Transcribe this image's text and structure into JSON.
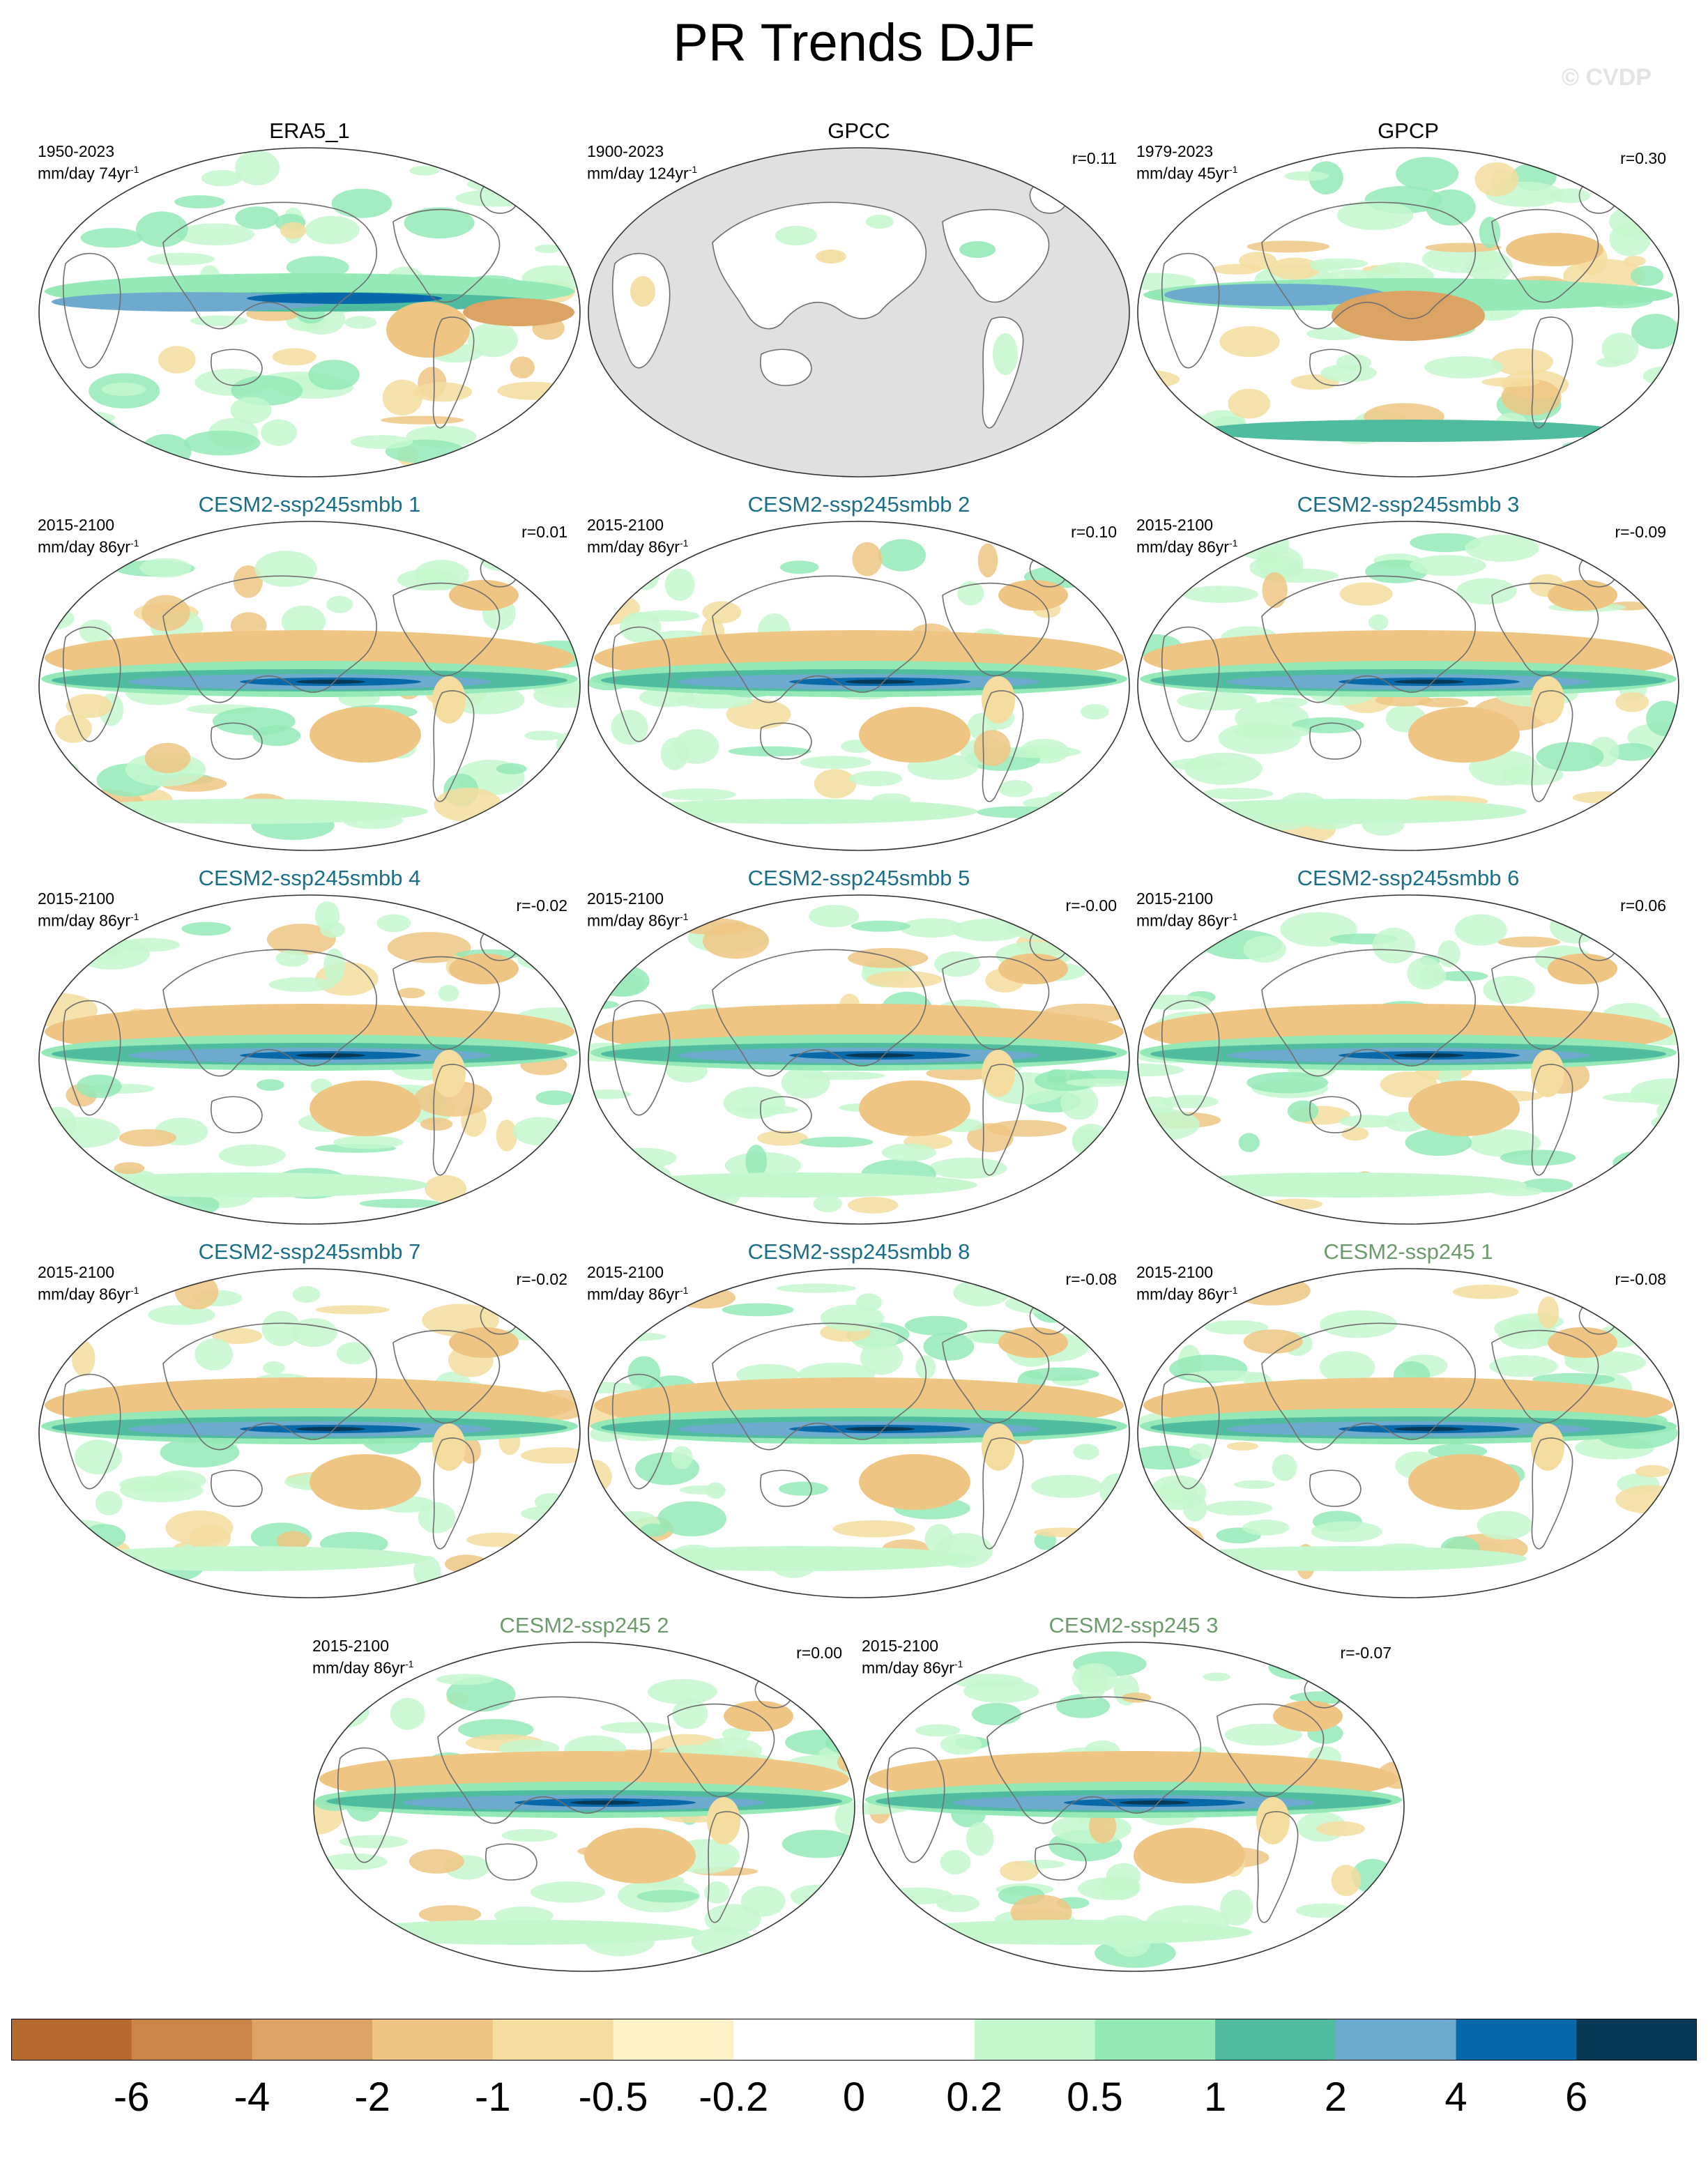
{
  "title": "PR Trends DJF",
  "watermark": "© CVDP",
  "panels": [
    {
      "title": "ERA5_1",
      "kind": "obs",
      "years": "1950-2023",
      "units": "mm/day 74yr",
      "unit_exp": "-1",
      "r": "",
      "pattern": "era5",
      "land_only": false
    },
    {
      "title": "GPCC",
      "kind": "obs",
      "years": "1900-2023",
      "units": "mm/day 124yr",
      "unit_exp": "-1",
      "r": "r=0.11",
      "pattern": "gpcc",
      "land_only": true
    },
    {
      "title": "GPCP",
      "kind": "obs",
      "years": "1979-2023",
      "units": "mm/day 45yr",
      "unit_exp": "-1",
      "r": "r=0.30",
      "pattern": "gpcp",
      "land_only": false
    },
    {
      "title": "CESM2-ssp245smbb 1",
      "kind": "smbb",
      "years": "2015-2100",
      "units": "mm/day 86yr",
      "unit_exp": "-1",
      "r": "r=0.01",
      "pattern": "model",
      "land_only": false
    },
    {
      "title": "CESM2-ssp245smbb 2",
      "kind": "smbb",
      "years": "2015-2100",
      "units": "mm/day 86yr",
      "unit_exp": "-1",
      "r": "r=0.10",
      "pattern": "model",
      "land_only": false
    },
    {
      "title": "CESM2-ssp245smbb 3",
      "kind": "smbb",
      "years": "2015-2100",
      "units": "mm/day 86yr",
      "unit_exp": "-1",
      "r": "r=-0.09",
      "pattern": "model",
      "land_only": false
    },
    {
      "title": "CESM2-ssp245smbb 4",
      "kind": "smbb",
      "years": "2015-2100",
      "units": "mm/day 86yr",
      "unit_exp": "-1",
      "r": "r=-0.02",
      "pattern": "model",
      "land_only": false
    },
    {
      "title": "CESM2-ssp245smbb 5",
      "kind": "smbb",
      "years": "2015-2100",
      "units": "mm/day 86yr",
      "unit_exp": "-1",
      "r": "r=-0.00",
      "pattern": "model",
      "land_only": false
    },
    {
      "title": "CESM2-ssp245smbb 6",
      "kind": "smbb",
      "years": "2015-2100",
      "units": "mm/day 86yr",
      "unit_exp": "-1",
      "r": "r=0.06",
      "pattern": "model",
      "land_only": false
    },
    {
      "title": "CESM2-ssp245smbb 7",
      "kind": "smbb",
      "years": "2015-2100",
      "units": "mm/day 86yr",
      "unit_exp": "-1",
      "r": "r=-0.02",
      "pattern": "model",
      "land_only": false
    },
    {
      "title": "CESM2-ssp245smbb 8",
      "kind": "smbb",
      "years": "2015-2100",
      "units": "mm/day 86yr",
      "unit_exp": "-1",
      "r": "r=-0.08",
      "pattern": "model",
      "land_only": false
    },
    {
      "title": "CESM2-ssp245 1",
      "kind": "ssp",
      "years": "2015-2100",
      "units": "mm/day 86yr",
      "unit_exp": "-1",
      "r": "r=-0.08",
      "pattern": "model",
      "land_only": false
    },
    {
      "title": "CESM2-ssp245 2",
      "kind": "ssp",
      "years": "2015-2100",
      "units": "mm/day 86yr",
      "unit_exp": "-1",
      "r": "r=0.00",
      "pattern": "model",
      "land_only": false
    },
    {
      "title": "CESM2-ssp245 3",
      "kind": "ssp",
      "years": "2015-2100",
      "units": "mm/day 86yr",
      "unit_exp": "-1",
      "r": "r=-0.07",
      "pattern": "model",
      "land_only": false
    }
  ],
  "colorbar": {
    "colors": [
      "#b5692c",
      "#cb8546",
      "#dca464",
      "#eec583",
      "#f4dd9f",
      "#faf2c6",
      "#ffffff",
      "#ffffff",
      "#c6f8cf",
      "#94e9b7",
      "#4fbca0",
      "#6eaacd",
      "#0869aa",
      "#073956"
    ],
    "labels": [
      "-6",
      "-4",
      "-2",
      "-1",
      "-0.5",
      "-0.2",
      "0",
      "0.2",
      "0.5",
      "1",
      "2",
      "4",
      "6"
    ]
  },
  "colors": {
    "ocean_gray": "#e0e0e0",
    "coast": "#6e6e6e",
    "title_obs": "#000000",
    "title_smbb": "#1a6e8a",
    "title_ssp": "#6d9a6d"
  }
}
